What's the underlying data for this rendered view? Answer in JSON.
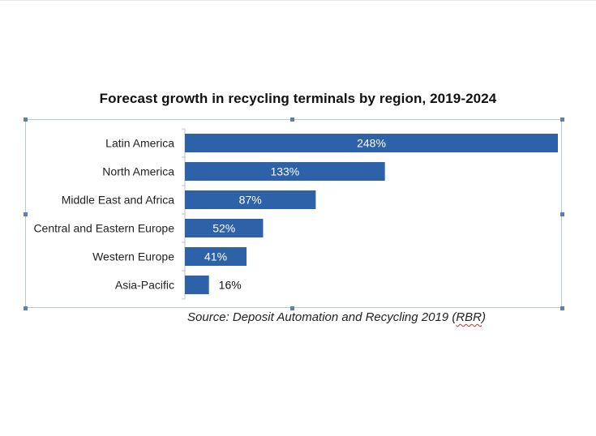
{
  "chart_data": {
    "type": "bar",
    "orientation": "horizontal",
    "title": "Forecast growth in recycling terminals by region, 2019-2024",
    "categories": [
      "Latin America",
      "North America",
      "Middle East and Africa",
      "Central and Eastern Europe",
      "Western Europe",
      "Asia-Pacific"
    ],
    "values": [
      248,
      133,
      87,
      52,
      41,
      16
    ],
    "data_labels": [
      "248%",
      "133%",
      "87%",
      "52%",
      "41%",
      "16%"
    ],
    "xlim": [
      0,
      248
    ],
    "grid": false,
    "legend": "none",
    "bar_color": "#2e62a8"
  },
  "source": {
    "prefix": "Source: Deposit Automation and Recycling 2019 (",
    "rbr": "RBR",
    "suffix": ")"
  },
  "colors": {
    "bar": "#2e62a8",
    "label_inside": "#ffffff",
    "label_outside": "#111111",
    "selection_handles": "#5b7fae"
  }
}
